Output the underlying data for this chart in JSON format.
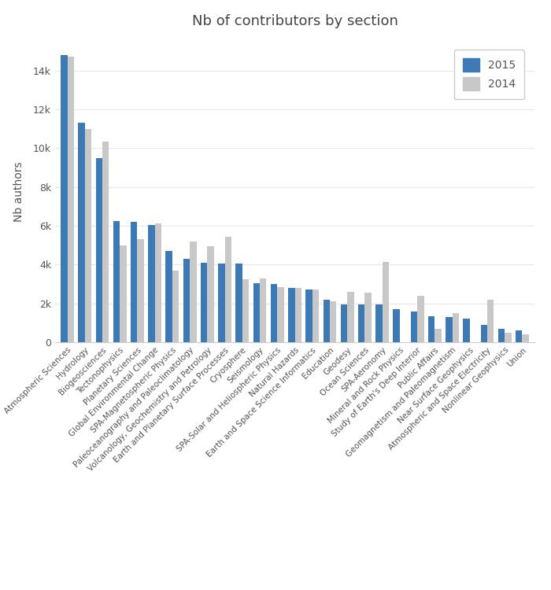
{
  "title": "Nb of contributors by section",
  "ylabel": "Nb authors",
  "categories": [
    "Atmospheric Sciences",
    "Hydrology",
    "Biogeosciences",
    "Tectonophysics",
    "Planetary Sciences",
    "Global Environmental Change",
    "SPA-Magnetospheric Physics",
    "Paleoceanography and Paleoclimatology",
    "Volcanology, Geochemistry and Petrology",
    "Earth and Planetary Surface Processes",
    "Cryosphere",
    "Seismology",
    "SPA-Solar and Heliospheric Physics",
    "Natural Hazards",
    "Earth and Space Science Informatics",
    "Education",
    "Geodesy",
    "Ocean Sciences",
    "SPA-Aeronomy",
    "Mineral and Rock Physics",
    "Study of Earth's Deep Interior",
    "Public Affairs",
    "Geomagnetism and Paleomagnetism",
    "Near Surface Geophysics",
    "Atmospheric and Space Electricity",
    "Nonlinear Geophysics",
    "Union"
  ],
  "values_2015": [
    14800,
    11300,
    9500,
    6250,
    6200,
    6050,
    4700,
    4300,
    4100,
    4050,
    4050,
    3050,
    3000,
    2800,
    2700,
    2200,
    1950,
    1950,
    1950,
    1700,
    1600,
    1350,
    1300,
    1200,
    900,
    700,
    600
  ],
  "values_2014": [
    14700,
    11000,
    10350,
    5000,
    5300,
    6100,
    3700,
    5200,
    4950,
    5450,
    3250,
    3300,
    2850,
    2800,
    2700,
    2100,
    2600,
    2550,
    4150,
    0,
    2400,
    700,
    1500,
    0,
    2200,
    500,
    400
  ],
  "color_2015": "#3D7AB5",
  "color_2014": "#C8C8C8",
  "background_color": "#FFFFFF",
  "legend_labels": [
    "2015",
    "2014"
  ],
  "ytick_labels": [
    "0",
    "2k",
    "4k",
    "6k",
    "8k",
    "10k",
    "12k",
    "14k"
  ],
  "ytick_values": [
    0,
    2000,
    4000,
    6000,
    8000,
    10000,
    12000,
    14000
  ],
  "figwidth": 7.0,
  "figheight": 7.5,
  "dpi": 100
}
